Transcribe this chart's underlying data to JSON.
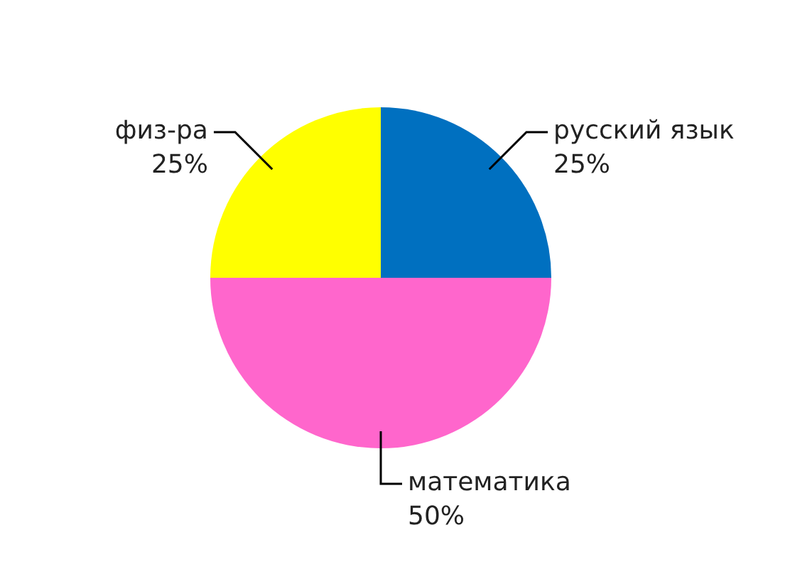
{
  "chart_data": {
    "type": "pie",
    "categories": [
      "русский язык",
      "математика",
      "физ-ра"
    ],
    "values": [
      25,
      50,
      25
    ],
    "value_labels": [
      "25%",
      "50%",
      "25%"
    ],
    "colors": [
      "#0070c0",
      "#ff66cc",
      "#ffff00"
    ],
    "legend": false
  }
}
